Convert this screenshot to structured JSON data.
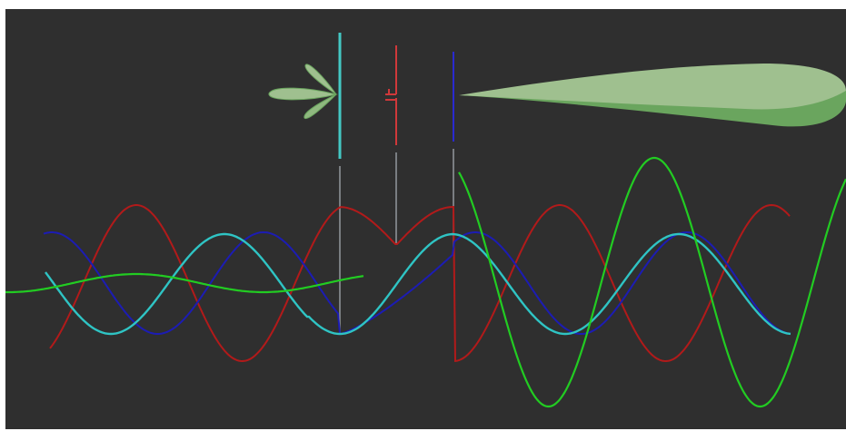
{
  "diagram": {
    "type": "yagi-uda-antenna-wave-illustration",
    "colors": {
      "background": "#2f2f2f",
      "reflector": "#44c8c4",
      "driven_element": "#d0383a",
      "director": "#2a2ad0",
      "connector_lines": "#9aa0a6",
      "wave_reflector": "#2fc4c4",
      "wave_driven": "#b21a1a",
      "wave_director": "#1c1cb4",
      "wave_sum": "#22cc22",
      "radiation_lobe_light": "#9fc08f",
      "radiation_lobe_dark": "#6aa55e"
    },
    "elements": [
      {
        "name": "reflector",
        "color_key": "reflector"
      },
      {
        "name": "driven-element",
        "color_key": "driven_element"
      },
      {
        "name": "director",
        "color_key": "director"
      }
    ],
    "waves": [
      {
        "name": "driven-wave",
        "color_key": "wave_driven"
      },
      {
        "name": "director-wave",
        "color_key": "wave_director"
      },
      {
        "name": "reflector-wave",
        "color_key": "wave_reflector"
      },
      {
        "name": "sum-wave",
        "color_key": "wave_sum"
      }
    ],
    "labels": []
  }
}
